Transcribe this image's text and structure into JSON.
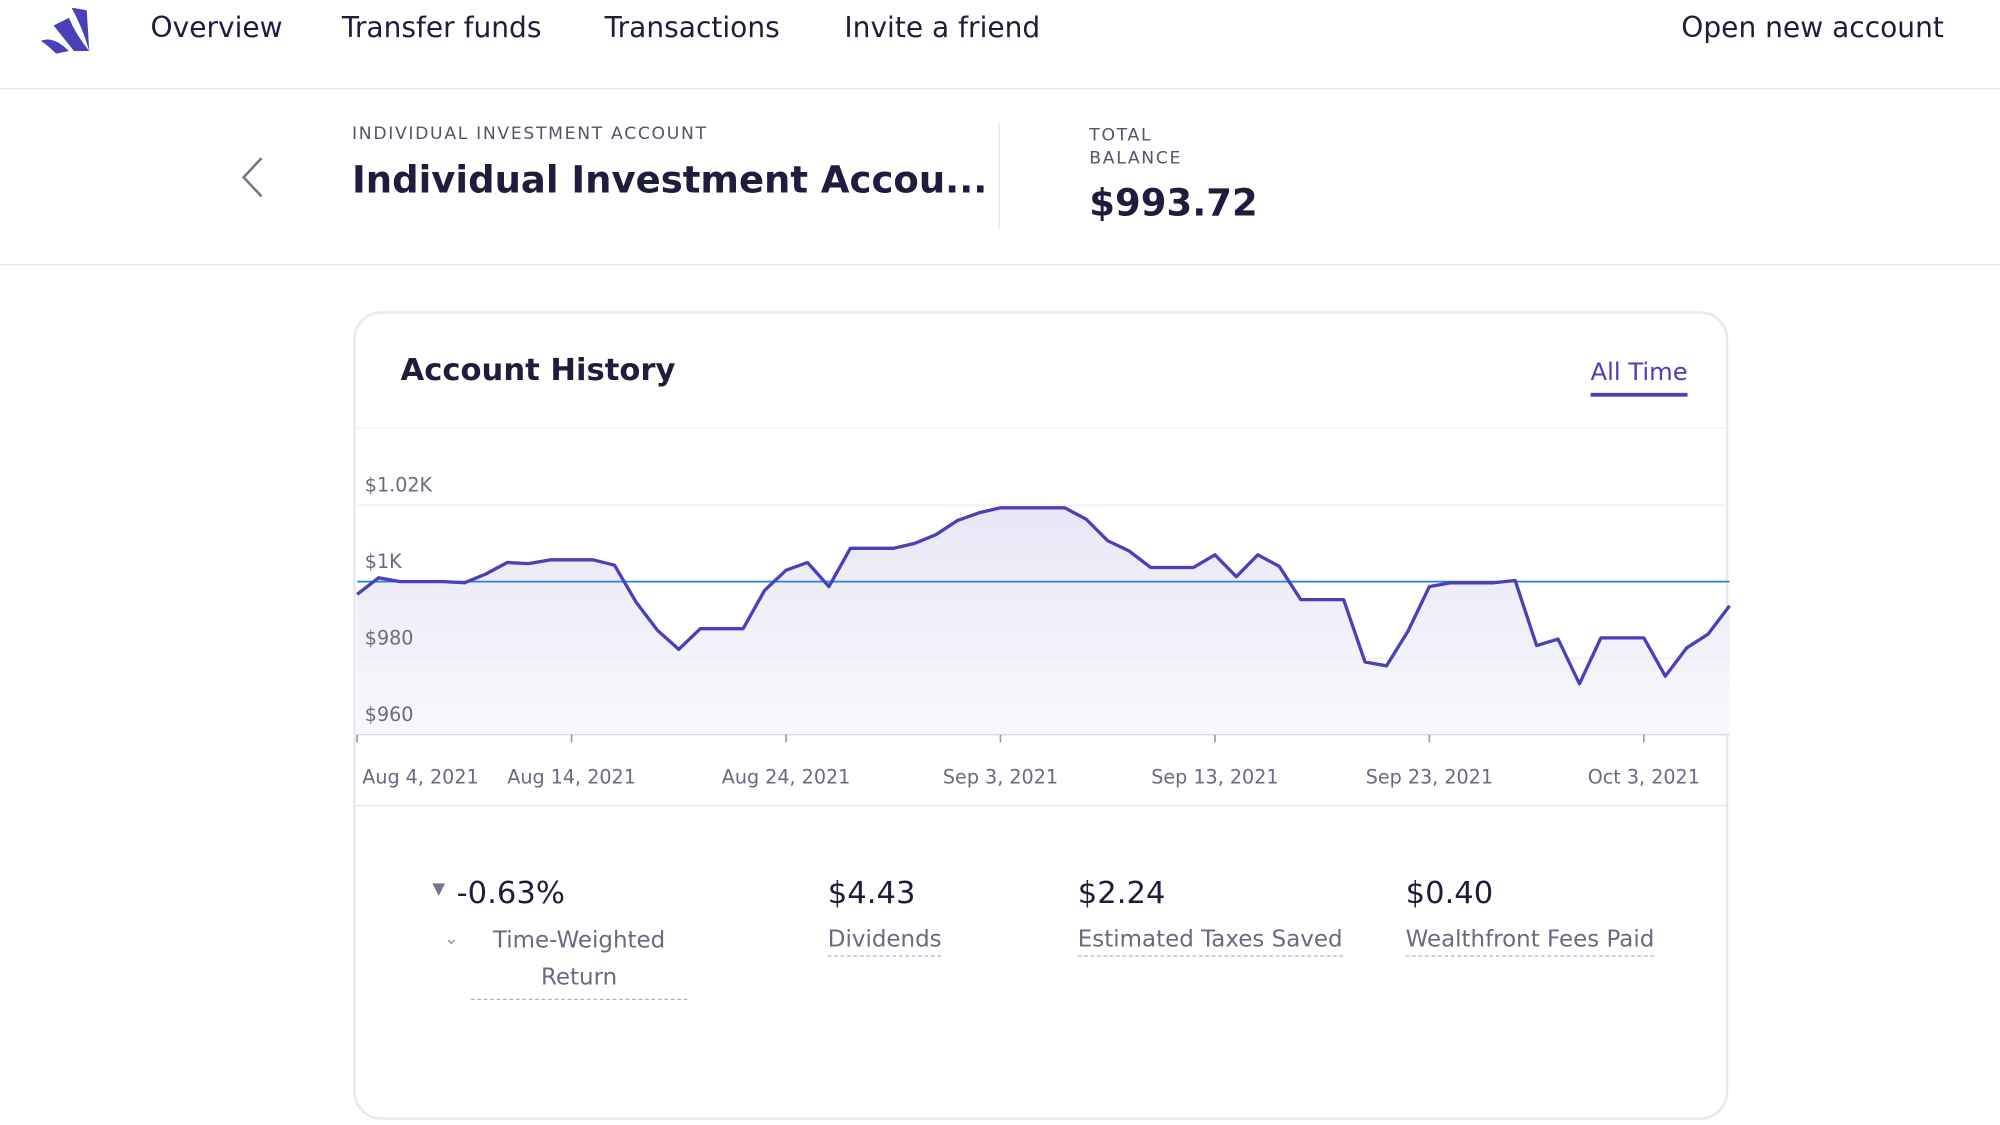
{
  "nav": {
    "items": [
      "Overview",
      "Transfer funds",
      "Transactions",
      "Invite a friend"
    ],
    "action": "Open new account"
  },
  "header": {
    "label": "INDIVIDUAL INVESTMENT ACCOUNT",
    "title": "Individual Investment Accou...",
    "balance_label": "TOTAL BALANCE",
    "balance": "$993.72"
  },
  "card": {
    "title": "Account History",
    "range": "All Time"
  },
  "stats": [
    {
      "value": "-0.63%",
      "label": "Time-Weighted Return"
    },
    {
      "value": "$4.43",
      "label": "Dividends"
    },
    {
      "value": "$2.24",
      "label": "Estimated Taxes Saved"
    },
    {
      "value": "$0.40",
      "label": "Wealthfront Fees Paid"
    }
  ],
  "chart_data": {
    "type": "area",
    "color": "#4a40b8",
    "reference_line": 1000,
    "reference_color": "#2f7fd6",
    "x": [
      "2021-08-04",
      "2021-08-05",
      "2021-08-06",
      "2021-08-07",
      "2021-08-08",
      "2021-08-09",
      "2021-08-10",
      "2021-08-11",
      "2021-08-12",
      "2021-08-13",
      "2021-08-14",
      "2021-08-15",
      "2021-08-16",
      "2021-08-17",
      "2021-08-18",
      "2021-08-19",
      "2021-08-20",
      "2021-08-21",
      "2021-08-22",
      "2021-08-23",
      "2021-08-24",
      "2021-08-25",
      "2021-08-26",
      "2021-08-27",
      "2021-08-28",
      "2021-08-29",
      "2021-08-30",
      "2021-08-31",
      "2021-09-01",
      "2021-09-02",
      "2021-09-03",
      "2021-09-04",
      "2021-09-05",
      "2021-09-06",
      "2021-09-07",
      "2021-09-08",
      "2021-09-09",
      "2021-09-10",
      "2021-09-11",
      "2021-09-12",
      "2021-09-13",
      "2021-09-14",
      "2021-09-15",
      "2021-09-16",
      "2021-09-17",
      "2021-09-18",
      "2021-09-19",
      "2021-09-20",
      "2021-09-21",
      "2021-09-22",
      "2021-09-23",
      "2021-09-24",
      "2021-09-25",
      "2021-09-26",
      "2021-09-27",
      "2021-09-28",
      "2021-09-29",
      "2021-09-30",
      "2021-10-01",
      "2021-10-02",
      "2021-10-03",
      "2021-10-04",
      "2021-10-05",
      "2021-10-06",
      "2021-10-07"
    ],
    "values": [
      996.7,
      1001,
      1000,
      1000,
      1000,
      999.7,
      1002,
      1005,
      1004.7,
      1005.7,
      1005.7,
      1005.7,
      1004.3,
      994.7,
      987.3,
      982.3,
      987.7,
      987.7,
      987.7,
      997.7,
      1003,
      1005,
      998.7,
      1008.7,
      1008.7,
      1008.7,
      1010,
      1012.3,
      1016,
      1018,
      1019.3,
      1019.3,
      1019.3,
      1019.3,
      1016.3,
      1010.7,
      1008,
      1003.7,
      1003.7,
      1003.7,
      1007,
      1001.3,
      1007,
      1004,
      995.3,
      995.3,
      995.3,
      979,
      978,
      987,
      998.7,
      999.7,
      999.7,
      999.7,
      1000.3,
      983.3,
      985,
      973.3,
      985.3,
      985.3,
      985.3,
      975.3,
      982.7,
      986.3,
      993.7
    ],
    "xlim": [
      "2021-08-04",
      "2021-10-07"
    ],
    "xticks": [
      {
        "value": "2021-08-04",
        "label": "Aug 4, 2021"
      },
      {
        "value": "2021-08-14",
        "label": "Aug 14, 2021"
      },
      {
        "value": "2021-08-24",
        "label": "Aug 24, 2021"
      },
      {
        "value": "2021-09-03",
        "label": "Sep 3, 2021"
      },
      {
        "value": "2021-09-13",
        "label": "Sep 13, 2021"
      },
      {
        "value": "2021-09-23",
        "label": "Sep 23, 2021"
      },
      {
        "value": "2021-10-03",
        "label": "Oct 3, 2021"
      }
    ],
    "ylim": [
      960,
      1040
    ],
    "yticks": [
      {
        "value": 960,
        "label": "$960"
      },
      {
        "value": 980,
        "label": "$980"
      },
      {
        "value": 1000,
        "label": "$1K"
      },
      {
        "value": 1020,
        "label": "$1.02K"
      }
    ],
    "grid": true
  }
}
